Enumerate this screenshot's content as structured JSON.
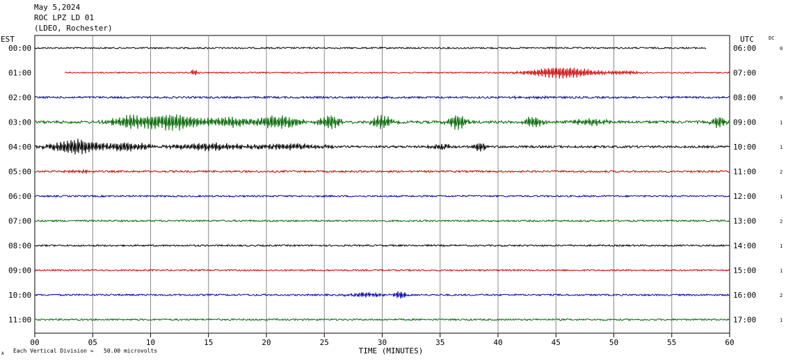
{
  "header": {
    "date": "May 5,2024",
    "station": "ROC LPZ LD 01",
    "network": "(LDEO, Rochester)",
    "left_zone": "EST",
    "right_zone": "UTC",
    "dc_label": "DC"
  },
  "footer": {
    "scale_note": "Each Vertical Division =   50.00 microvolts",
    "corner_mark": "A"
  },
  "chart_data": {
    "type": "line",
    "title": "",
    "xlabel": "TIME (MINUTES)",
    "ylabel": "",
    "xlim": [
      0,
      60
    ],
    "x_ticks": [
      "00",
      "05",
      "10",
      "15",
      "20",
      "25",
      "30",
      "35",
      "40",
      "45",
      "50",
      "55",
      "60"
    ],
    "grid": true,
    "colors": [
      "#000000",
      "#cc0000",
      "#0000aa",
      "#006600"
    ],
    "rows": [
      {
        "est": "00:00",
        "utc": "06:00",
        "dc": "0",
        "color": "#000000",
        "start": 0,
        "end": 58,
        "amp": 1.0,
        "bursts": []
      },
      {
        "est": "01:00",
        "utc": "07:00",
        "dc": "",
        "color": "#cc0000",
        "start": 2.6,
        "end": 60,
        "amp": 0.8,
        "bursts": [
          [
            13.8,
            0.3,
            5,
            0.6
          ],
          [
            45.5,
            3.0,
            8,
            0.5
          ],
          [
            51,
            1.5,
            2,
            0.6
          ]
        ]
      },
      {
        "est": "02:00",
        "utc": "08:00",
        "dc": "0",
        "color": "#0000aa",
        "start": 0,
        "end": 60,
        "amp": 1.3,
        "bursts": [
          [
            43,
            2,
            1.5,
            0.7
          ]
        ]
      },
      {
        "est": "03:00",
        "utc": "09:00",
        "dc": "1",
        "color": "#006600",
        "start": 0,
        "end": 60,
        "amp": 1.8,
        "bursts": [
          [
            12,
            3,
            11,
            0.9
          ],
          [
            8,
            1.5,
            7,
            0.9
          ],
          [
            21,
            2,
            9,
            0.9
          ],
          [
            25.5,
            1,
            9,
            0.9
          ],
          [
            30,
            0.8,
            10,
            0.9
          ],
          [
            36.5,
            0.8,
            10,
            0.9
          ],
          [
            43,
            0.8,
            8,
            0.9
          ],
          [
            48,
            1.5,
            5,
            0.9
          ],
          [
            59,
            0.6,
            7,
            0.9
          ],
          [
            17,
            1.5,
            6,
            0.9
          ]
        ]
      },
      {
        "est": "04:00",
        "utc": "10:00",
        "dc": "1",
        "color": "#000000",
        "start": 0,
        "end": 60,
        "amp": 1.5,
        "bursts": [
          [
            3.5,
            2,
            11,
            0.9
          ],
          [
            8,
            2,
            6,
            0.9
          ],
          [
            15,
            3,
            5,
            0.9
          ],
          [
            22,
            3,
            4,
            0.9
          ],
          [
            35,
            1,
            4,
            0.9
          ],
          [
            38.5,
            0.6,
            6,
            0.9
          ]
        ]
      },
      {
        "est": "05:00",
        "utc": "11:00",
        "dc": "2",
        "color": "#cc0000",
        "start": 0,
        "end": 60,
        "amp": 1.2,
        "bursts": [
          [
            3.5,
            1.5,
            1.5,
            0.9
          ]
        ]
      },
      {
        "est": "06:00",
        "utc": "12:00",
        "dc": "1",
        "color": "#0000aa",
        "start": 0,
        "end": 60,
        "amp": 1.1,
        "bursts": []
      },
      {
        "est": "07:00",
        "utc": "13:00",
        "dc": "2",
        "color": "#006600",
        "start": 0,
        "end": 60,
        "amp": 1.1,
        "bursts": []
      },
      {
        "est": "08:00",
        "utc": "14:00",
        "dc": "1",
        "color": "#000000",
        "start": 0,
        "end": 60,
        "amp": 1.1,
        "bursts": []
      },
      {
        "est": "09:00",
        "utc": "15:00",
        "dc": "1",
        "color": "#cc0000",
        "start": 0,
        "end": 60,
        "amp": 1.0,
        "bursts": []
      },
      {
        "est": "10:00",
        "utc": "16:00",
        "dc": "2",
        "color": "#0000aa",
        "start": 0,
        "end": 60,
        "amp": 1.1,
        "bursts": [
          [
            28.5,
            1.5,
            3,
            0.6
          ],
          [
            31.5,
            0.6,
            5,
            0.7
          ]
        ]
      },
      {
        "est": "11:00",
        "utc": "17:00",
        "dc": "1",
        "color": "#006600",
        "start": 0,
        "end": 60,
        "amp": 1.1,
        "bursts": []
      }
    ]
  }
}
